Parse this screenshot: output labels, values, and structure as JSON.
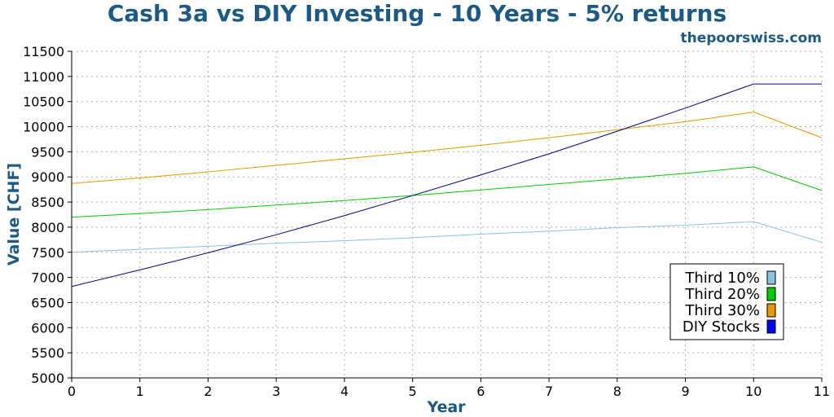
{
  "chart_data": {
    "type": "line",
    "title": "Cash 3a vs DIY Investing - 10 Years - 5% returns",
    "subtitle": "thepoorswiss.com",
    "xlabel": "Year",
    "ylabel": "Value [CHF]",
    "xlim": [
      0,
      11
    ],
    "ylim": [
      5000,
      11500
    ],
    "x_ticks": [
      0,
      1,
      2,
      3,
      4,
      5,
      6,
      7,
      8,
      9,
      10,
      11
    ],
    "y_ticks": [
      5000,
      5500,
      6000,
      6500,
      7000,
      7500,
      8000,
      8500,
      9000,
      9500,
      10000,
      10500,
      11000,
      11500
    ],
    "grid": true,
    "legend_position": "bottom-right",
    "x": [
      0,
      1,
      2,
      3,
      4,
      5,
      6,
      7,
      8,
      9,
      10,
      11
    ],
    "series": [
      {
        "name": "Third 10%",
        "color": "#87c4e4",
        "values": [
          7500,
          7560,
          7620,
          7680,
          7730,
          7790,
          7860,
          7920,
          7990,
          8040,
          8110,
          7700
        ]
      },
      {
        "name": "Third 20%",
        "color": "#00cc00",
        "values": [
          8200,
          8270,
          8350,
          8440,
          8530,
          8630,
          8740,
          8850,
          8960,
          9070,
          9200,
          8730
        ]
      },
      {
        "name": "Third 30%",
        "color": "#e69900",
        "values": [
          8870,
          8980,
          9100,
          9230,
          9360,
          9490,
          9630,
          9780,
          9940,
          10100,
          10290,
          9780
        ]
      },
      {
        "name": "DIY Stocks",
        "color": "#0000ff",
        "line_color": "#000080",
        "values": [
          6820,
          7150,
          7490,
          7850,
          8230,
          8630,
          9040,
          9460,
          9910,
          10370,
          10850,
          10850
        ]
      }
    ]
  }
}
